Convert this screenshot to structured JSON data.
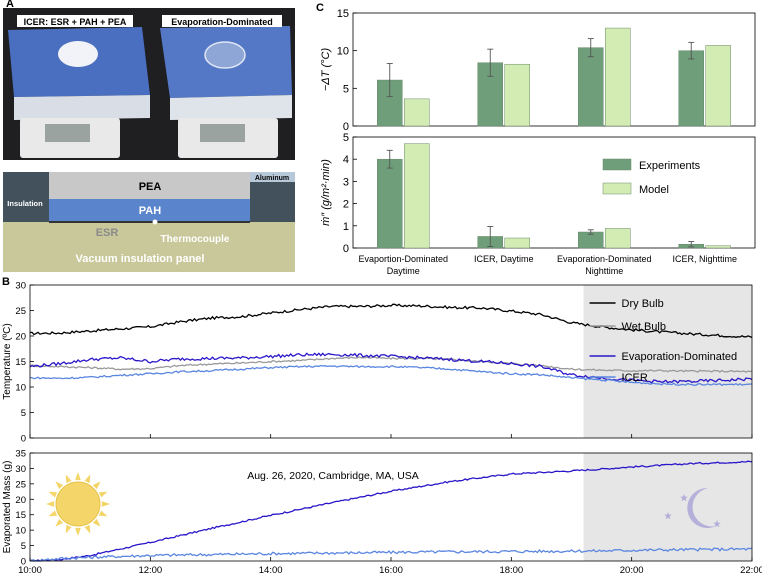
{
  "panels": {
    "a": "A",
    "b": "B",
    "c": "C"
  },
  "photo": {
    "label_left": "ICER: ESR + PAH + PEA",
    "label_right": "Evaporation-Dominated"
  },
  "schematic": {
    "pea": "PEA",
    "pah": "PAH",
    "esr": "ESR",
    "aluminum": "Aluminum",
    "insulation": "Insulation",
    "thermocouple": "Thermocouple",
    "vacuum": "Vacuum insulation panel"
  },
  "colors": {
    "experiments": "#6f9e7a",
    "model": "#d3ecb4",
    "dry_bulb": "#000000",
    "wet_bulb": "#9a9a9a",
    "evap_dominated": "#2b16c9",
    "icer": "#5b86e0",
    "night_shade": "#e6e6e6",
    "sun": "#f4d56a",
    "moon": "#b4b0d9"
  },
  "chart_data": [
    {
      "type": "bar",
      "ylabel": "−ΔT (°C)",
      "ylim": [
        0,
        15
      ],
      "yticks": [
        0,
        5,
        10,
        15
      ],
      "categories": [
        "Evaportion-Dominated\nDaytime",
        "ICER, Daytime",
        "Evaporation-Dominated\nNighttime",
        "ICER, Nighttime"
      ],
      "series": [
        {
          "name": "Experiments",
          "values": [
            6.1,
            8.4,
            10.4,
            10.0
          ],
          "errors": [
            2.2,
            1.8,
            1.2,
            1.1
          ]
        },
        {
          "name": "Model",
          "values": [
            3.6,
            8.2,
            13.0,
            10.7
          ]
        }
      ]
    },
    {
      "type": "bar",
      "ylabel": "ṁ″ (g/m²·min)",
      "ylim": [
        0,
        5
      ],
      "yticks": [
        0,
        1,
        2,
        3,
        4,
        5
      ],
      "categories": [
        "Evaportion-Dominated\nDaytime",
        "ICER, Daytime",
        "Evaporation-Dominated\nNighttime",
        "ICER, Nighttime"
      ],
      "legend": [
        "Experiments",
        "Model"
      ],
      "series": [
        {
          "name": "Experiments",
          "values": [
            4.0,
            0.52,
            0.72,
            0.17
          ],
          "errors": [
            0.4,
            0.45,
            0.1,
            0.12
          ]
        },
        {
          "name": "Model",
          "values": [
            4.7,
            0.45,
            0.88,
            0.1
          ]
        }
      ]
    },
    {
      "type": "line",
      "ylabel": "Temperature (ºC)",
      "ylim": [
        0,
        30
      ],
      "yticks": [
        0,
        5,
        10,
        15,
        20,
        25,
        30
      ],
      "xlim": [
        10,
        22
      ],
      "legend": [
        "Dry Bulb",
        "Wet Bulb",
        "Evaporation-Dominated",
        "ICER"
      ],
      "night_start": 19.2,
      "series": [
        {
          "name": "Dry Bulb",
          "x": [
            10,
            10.5,
            11,
            11.5,
            12,
            12.5,
            13,
            13.5,
            14,
            14.5,
            15,
            15.5,
            16,
            16.5,
            17,
            17.5,
            18,
            18.5,
            19,
            19.5,
            20,
            20.5,
            21,
            21.5,
            22
          ],
          "y": [
            20.5,
            20.6,
            21,
            21.4,
            21.8,
            22.8,
            23.5,
            23.8,
            24.5,
            25.2,
            25.8,
            25.8,
            26.0,
            25.9,
            25.6,
            25.5,
            24.9,
            24.2,
            22.6,
            21.8,
            21.2,
            20.8,
            20.4,
            20.1,
            19.8
          ]
        },
        {
          "name": "Wet Bulb",
          "x": [
            10,
            10.5,
            11,
            11.5,
            12,
            12.5,
            13,
            13.5,
            14,
            14.5,
            15,
            15.5,
            16,
            16.5,
            17,
            17.5,
            18,
            18.5,
            19,
            19.5,
            20,
            20.5,
            21,
            21.5,
            22
          ],
          "y": [
            14.2,
            14.0,
            13.8,
            13.5,
            13.6,
            14.2,
            14.5,
            14.7,
            15.0,
            15.2,
            15.6,
            15.8,
            15.6,
            15.6,
            15.4,
            15.0,
            14.6,
            14.2,
            13.5,
            13.3,
            13.2,
            13.2,
            13.1,
            13.1,
            13.0
          ]
        },
        {
          "name": "Evaporation-Dominated",
          "x": [
            10,
            10.5,
            11,
            11.5,
            12,
            12.5,
            13,
            13.5,
            14,
            14.5,
            15,
            15.5,
            16,
            16.5,
            17,
            17.5,
            18,
            18.5,
            19,
            19.5,
            20,
            20.5,
            21,
            21.5,
            22
          ],
          "y": [
            14.0,
            14.6,
            15.4,
            15.7,
            15.0,
            15.5,
            15.6,
            15.7,
            16.0,
            16.3,
            16.4,
            16.2,
            16.0,
            15.7,
            15.4,
            15.0,
            14.6,
            14.0,
            12.4,
            11.8,
            11.3,
            11.0,
            11.1,
            11.3,
            11.6
          ]
        },
        {
          "name": "ICER",
          "x": [
            10,
            10.5,
            11,
            11.5,
            12,
            12.5,
            13,
            13.5,
            14,
            14.5,
            15,
            15.5,
            16,
            16.5,
            17,
            17.5,
            18,
            18.5,
            19,
            19.5,
            20,
            20.5,
            21,
            21.5,
            22
          ],
          "y": [
            11.8,
            11.7,
            11.9,
            12.3,
            12.6,
            13.0,
            13.2,
            13.5,
            13.8,
            14.0,
            14.1,
            14.0,
            14.0,
            13.8,
            13.5,
            13.0,
            12.6,
            12.4,
            11.8,
            11.4,
            10.9,
            10.6,
            10.5,
            10.5,
            10.5
          ]
        }
      ]
    },
    {
      "type": "line",
      "ylabel": "Evaporated Mass (g)",
      "ylim": [
        0,
        35
      ],
      "yticks": [
        0,
        5,
        10,
        15,
        20,
        25,
        30,
        35
      ],
      "xlim": [
        10,
        22
      ],
      "xticks": [
        "10:00",
        "12:00",
        "14:00",
        "16:00",
        "18:00",
        "20:00",
        "22:00"
      ],
      "annotation": "Aug. 26, 2020, Cambridge, MA, USA",
      "night_start": 19.2,
      "series": [
        {
          "name": "Evaporation-Dominated",
          "x": [
            10,
            10.5,
            11,
            12,
            13,
            14,
            15,
            16,
            17,
            18,
            19,
            19.5,
            20,
            20.5,
            21,
            21.5,
            22
          ],
          "y": [
            0,
            0.5,
            1.8,
            6.0,
            10.5,
            14.8,
            18.8,
            22.6,
            25.8,
            28.2,
            29.2,
            29.8,
            30.5,
            31.0,
            31.6,
            31.9,
            32.2
          ]
        },
        {
          "name": "ICER",
          "x": [
            10,
            10.5,
            11,
            12,
            13,
            14,
            15,
            16,
            17,
            18,
            19,
            19.5,
            20,
            20.5,
            21,
            21.5,
            22
          ],
          "y": [
            0,
            0.8,
            1.2,
            1.8,
            2.1,
            2.4,
            2.6,
            2.8,
            3.0,
            3.1,
            3.2,
            3.3,
            3.5,
            3.6,
            3.7,
            3.8,
            3.9
          ]
        }
      ]
    }
  ]
}
